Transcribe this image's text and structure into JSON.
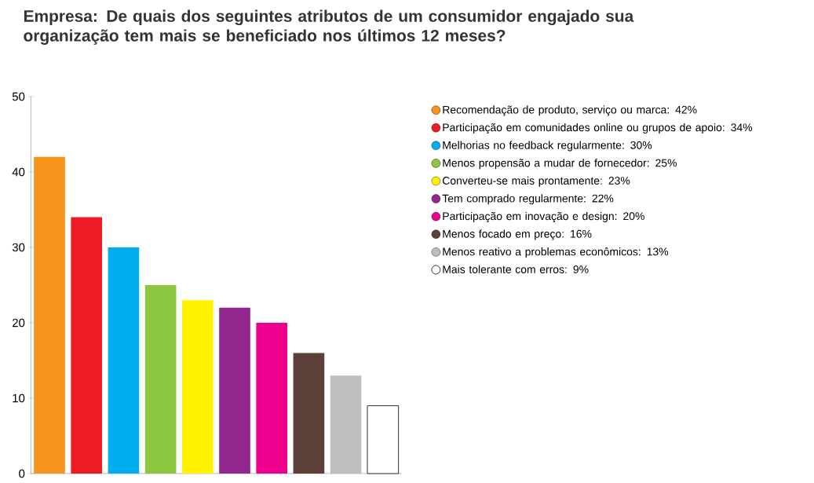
{
  "chart_data": {
    "type": "bar",
    "title": "Empresa: De quais dos seguintes atributos de um consumidor engajado sua organização tem mais se beneficiado nos últimos 12 meses?",
    "categories": [
      null,
      null,
      null,
      null,
      null,
      null,
      null,
      null,
      null,
      null
    ],
    "series": [
      {
        "name": "Recomendação de produto, serviço ou marca: 42%",
        "color": "#f7941d",
        "values": [
          42,
          null,
          null,
          null,
          null,
          null,
          null,
          null,
          null,
          null
        ]
      },
      {
        "name": "Participação em comunidades online ou grupos de apoio: 34%",
        "color": "#ed1c24",
        "values": [
          null,
          34,
          null,
          null,
          null,
          null,
          null,
          null,
          null,
          null
        ]
      },
      {
        "name": "Melhorias no feedback regularmente: 30%",
        "color": "#00aeef",
        "values": [
          null,
          null,
          30,
          null,
          null,
          null,
          null,
          null,
          null,
          null
        ]
      },
      {
        "name": "Menos propensão a mudar de fornecedor: 25%",
        "color": "#8dc63f",
        "values": [
          null,
          null,
          null,
          25,
          null,
          null,
          null,
          null,
          null,
          null
        ]
      },
      {
        "name": "Converteu-se mais prontamente: 23%",
        "color": "#fff200",
        "values": [
          null,
          null,
          null,
          null,
          23,
          null,
          null,
          null,
          null,
          null
        ]
      },
      {
        "name": "Tem comprado regularmente: 22%",
        "color": "#92278f",
        "values": [
          null,
          null,
          null,
          null,
          null,
          22,
          null,
          null,
          null,
          null
        ]
      },
      {
        "name": "Participação em inovação e design: 20%",
        "color": "#ec008c",
        "values": [
          null,
          null,
          null,
          null,
          null,
          null,
          20,
          null,
          null,
          null
        ]
      },
      {
        "name": "Menos focado em preço: 16%",
        "color": "#5d4037",
        "values": [
          null,
          null,
          null,
          null,
          null,
          null,
          null,
          16,
          null,
          null
        ]
      },
      {
        "name": "Menos reativo a problemas econômicos: 13%",
        "color": "#bcbec0",
        "values": [
          null,
          null,
          null,
          null,
          null,
          null,
          null,
          null,
          13,
          null
        ]
      },
      {
        "name": "Mais tolerante com erros: 9%",
        "color": "#ffffff",
        "values": [
          null,
          null,
          null,
          null,
          null,
          null,
          null,
          null,
          null,
          9
        ]
      }
    ],
    "ylim": [
      0,
      50
    ],
    "yticks": [
      0,
      10,
      20,
      30,
      40,
      50
    ],
    "legend": "right"
  }
}
